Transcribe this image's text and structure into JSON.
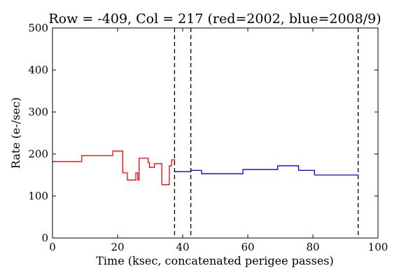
{
  "chart_data": {
    "type": "line",
    "title": "Row = -409, Col = 217 (red=2002, blue=2008/9)",
    "xlabel": "Time (ksec, concatenated perigee passes)",
    "ylabel": "Rate (e-/sec)",
    "xlim": [
      0,
      100
    ],
    "ylim": [
      0,
      500
    ],
    "xticks": [
      0,
      20,
      40,
      60,
      80,
      100
    ],
    "yticks": [
      0,
      100,
      200,
      300,
      400,
      500
    ],
    "grid": false,
    "legend": "none",
    "step": "post",
    "series": [
      {
        "color": "#ff0000",
        "x": [
          0,
          9,
          18.5,
          21.6,
          23,
          25.6,
          26.2,
          26.6,
          29.4,
          29.8,
          31.3,
          33.6,
          35.9,
          36.6,
          37.5
        ],
        "y": [
          182,
          196,
          207,
          155,
          138,
          155,
          138,
          190,
          180,
          168,
          177,
          127,
          172,
          186,
          177
        ]
      },
      {
        "color": "#0000ff",
        "x": [
          37.5,
          42.5,
          45.8,
          58.5,
          69.2,
          75.6,
          80.5,
          93.9
        ],
        "y": [
          158,
          161,
          153,
          163,
          172,
          161,
          150,
          150
        ]
      }
    ],
    "vlines": {
      "color": "#000000",
      "style": "dashed",
      "x": [
        37.5,
        42.5,
        93.9
      ]
    }
  }
}
